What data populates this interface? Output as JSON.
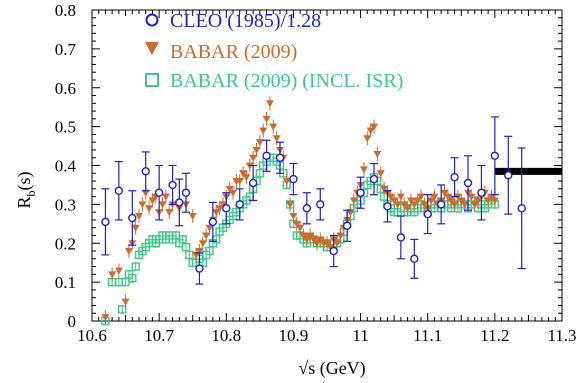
{
  "chart_data": {
    "type": "scatter",
    "xlabel": "√s (GeV)",
    "ylabel_main": "R",
    "ylabel_sub": "b",
    "ylabel_tail": "(s)",
    "xlim": [
      10.6,
      11.3
    ],
    "ylim": [
      0,
      0.8
    ],
    "x_ticks": [
      "10.6",
      "10.7",
      "10.8",
      "10.9",
      "11",
      "11.1",
      "11.2",
      "11.3"
    ],
    "y_ticks": [
      "0",
      "0.1",
      "0.2",
      "0.3",
      "0.4",
      "0.5",
      "0.6",
      "0.7",
      "0.8"
    ],
    "legend_position": "top-left",
    "reference_band": {
      "x_start": 11.2,
      "x_end": 11.3,
      "y": 0.385,
      "color": "#000000"
    },
    "series": [
      {
        "name": "CLEO (1985)/1.28",
        "marker": "open-circle",
        "color": "#1f1fd6",
        "points": [
          {
            "x": 10.62,
            "y": 0.255,
            "err": 0.085
          },
          {
            "x": 10.64,
            "y": 0.335,
            "err": 0.075
          },
          {
            "x": 10.66,
            "y": 0.265,
            "err": 0.07
          },
          {
            "x": 10.68,
            "y": 0.385,
            "err": 0.05
          },
          {
            "x": 10.7,
            "y": 0.33,
            "err": 0.07
          },
          {
            "x": 10.72,
            "y": 0.35,
            "err": 0.05
          },
          {
            "x": 10.73,
            "y": 0.305,
            "err": 0.06
          },
          {
            "x": 10.74,
            "y": 0.33,
            "err": 0.05
          },
          {
            "x": 10.76,
            "y": 0.135,
            "err": 0.04
          },
          {
            "x": 10.78,
            "y": 0.255,
            "err": 0.05
          },
          {
            "x": 10.8,
            "y": 0.29,
            "err": 0.04
          },
          {
            "x": 10.82,
            "y": 0.3,
            "err": 0.04
          },
          {
            "x": 10.84,
            "y": 0.355,
            "err": 0.045
          },
          {
            "x": 10.86,
            "y": 0.425,
            "err": 0.04
          },
          {
            "x": 10.88,
            "y": 0.42,
            "err": 0.04
          },
          {
            "x": 10.9,
            "y": 0.365,
            "err": 0.04
          },
          {
            "x": 10.92,
            "y": 0.29,
            "err": 0.04
          },
          {
            "x": 10.94,
            "y": 0.3,
            "err": 0.04
          },
          {
            "x": 10.96,
            "y": 0.18,
            "err": 0.04
          },
          {
            "x": 10.98,
            "y": 0.245,
            "err": 0.04
          },
          {
            "x": 11.0,
            "y": 0.33,
            "err": 0.04
          },
          {
            "x": 11.02,
            "y": 0.365,
            "err": 0.04
          },
          {
            "x": 11.04,
            "y": 0.295,
            "err": 0.04
          },
          {
            "x": 11.06,
            "y": 0.215,
            "err": 0.055
          },
          {
            "x": 11.08,
            "y": 0.16,
            "err": 0.05
          },
          {
            "x": 11.1,
            "y": 0.275,
            "err": 0.05
          },
          {
            "x": 11.12,
            "y": 0.3,
            "err": 0.05
          },
          {
            "x": 11.14,
            "y": 0.37,
            "err": 0.05
          },
          {
            "x": 11.16,
            "y": 0.355,
            "err": 0.07
          },
          {
            "x": 11.18,
            "y": 0.33,
            "err": 0.07
          },
          {
            "x": 11.2,
            "y": 0.425,
            "err": 0.1
          },
          {
            "x": 11.22,
            "y": 0.375,
            "err": 0.1
          },
          {
            "x": 11.24,
            "y": 0.29,
            "err": 0.155
          }
        ]
      },
      {
        "name": "BABAR (2009)",
        "marker": "filled-down-triangle",
        "color": "#cc6b2b",
        "points": [
          [
            10.62,
            0.01
          ],
          [
            10.63,
            0.12
          ],
          [
            10.64,
            0.13
          ],
          [
            10.65,
            0.05
          ],
          [
            10.655,
            0.18
          ],
          [
            10.66,
            0.2
          ],
          [
            10.665,
            0.24
          ],
          [
            10.67,
            0.27
          ],
          [
            10.675,
            0.3
          ],
          [
            10.68,
            0.33
          ],
          [
            10.685,
            0.29
          ],
          [
            10.69,
            0.31
          ],
          [
            10.695,
            0.32
          ],
          [
            10.7,
            0.28
          ],
          [
            10.705,
            0.3
          ],
          [
            10.71,
            0.32
          ],
          [
            10.715,
            0.28
          ],
          [
            10.72,
            0.3
          ],
          [
            10.73,
            0.29
          ],
          [
            10.74,
            0.3
          ],
          [
            10.75,
            0.27
          ],
          [
            10.755,
            0.17
          ],
          [
            10.76,
            0.18
          ],
          [
            10.765,
            0.2
          ],
          [
            10.77,
            0.22
          ],
          [
            10.775,
            0.24
          ],
          [
            10.78,
            0.26
          ],
          [
            10.785,
            0.28
          ],
          [
            10.79,
            0.29
          ],
          [
            10.795,
            0.3
          ],
          [
            10.8,
            0.32
          ],
          [
            10.805,
            0.34
          ],
          [
            10.81,
            0.33
          ],
          [
            10.815,
            0.36
          ],
          [
            10.82,
            0.36
          ],
          [
            10.825,
            0.38
          ],
          [
            10.83,
            0.37
          ],
          [
            10.835,
            0.4
          ],
          [
            10.84,
            0.42
          ],
          [
            10.845,
            0.44
          ],
          [
            10.85,
            0.46
          ],
          [
            10.855,
            0.49
          ],
          [
            10.86,
            0.52
          ],
          [
            10.865,
            0.56
          ],
          [
            10.87,
            0.5
          ],
          [
            10.875,
            0.47
          ],
          [
            10.88,
            0.44
          ],
          [
            10.885,
            0.42
          ],
          [
            10.89,
            0.36
          ],
          [
            10.895,
            0.3
          ],
          [
            10.9,
            0.27
          ],
          [
            10.905,
            0.25
          ],
          [
            10.91,
            0.24
          ],
          [
            10.915,
            0.22
          ],
          [
            10.92,
            0.21
          ],
          [
            10.925,
            0.22
          ],
          [
            10.93,
            0.21
          ],
          [
            10.935,
            0.2
          ],
          [
            10.94,
            0.21
          ],
          [
            10.945,
            0.2
          ],
          [
            10.95,
            0.2
          ],
          [
            10.955,
            0.19
          ],
          [
            10.96,
            0.21
          ],
          [
            10.965,
            0.2
          ],
          [
            10.97,
            0.22
          ],
          [
            10.975,
            0.24
          ],
          [
            10.98,
            0.26
          ],
          [
            10.985,
            0.28
          ],
          [
            10.99,
            0.31
          ],
          [
            10.995,
            0.33
          ],
          [
            11.0,
            0.35
          ],
          [
            11.005,
            0.39
          ],
          [
            11.01,
            0.47
          ],
          [
            11.015,
            0.49
          ],
          [
            11.02,
            0.5
          ],
          [
            11.025,
            0.43
          ],
          [
            11.03,
            0.38
          ],
          [
            11.035,
            0.34
          ],
          [
            11.04,
            0.33
          ],
          [
            11.045,
            0.32
          ],
          [
            11.05,
            0.31
          ],
          [
            11.055,
            0.3
          ],
          [
            11.06,
            0.32
          ],
          [
            11.065,
            0.3
          ],
          [
            11.07,
            0.29
          ],
          [
            11.075,
            0.31
          ],
          [
            11.08,
            0.3
          ],
          [
            11.085,
            0.31
          ],
          [
            11.09,
            0.32
          ],
          [
            11.095,
            0.3
          ],
          [
            11.1,
            0.29
          ],
          [
            11.105,
            0.31
          ],
          [
            11.11,
            0.32
          ],
          [
            11.115,
            0.3
          ],
          [
            11.12,
            0.31
          ],
          [
            11.125,
            0.33
          ],
          [
            11.13,
            0.32
          ],
          [
            11.135,
            0.31
          ],
          [
            11.14,
            0.3
          ],
          [
            11.145,
            0.32
          ],
          [
            11.15,
            0.31
          ],
          [
            11.155,
            0.3
          ],
          [
            11.16,
            0.33
          ],
          [
            11.165,
            0.32
          ],
          [
            11.17,
            0.3
          ],
          [
            11.175,
            0.31
          ],
          [
            11.18,
            0.32
          ],
          [
            11.185,
            0.33
          ],
          [
            11.19,
            0.31
          ],
          [
            11.195,
            0.32
          ],
          [
            11.2,
            0.31
          ]
        ]
      },
      {
        "name": "BABAR (2009) (INCL. ISR)",
        "marker": "open-square",
        "color": "#3cc98a",
        "points": [
          [
            10.62,
            0.0
          ],
          [
            10.63,
            0.1
          ],
          [
            10.64,
            0.1
          ],
          [
            10.645,
            0.03
          ],
          [
            10.65,
            0.1
          ],
          [
            10.655,
            0.12
          ],
          [
            10.66,
            0.11
          ],
          [
            10.665,
            0.14
          ],
          [
            10.67,
            0.17
          ],
          [
            10.675,
            0.18
          ],
          [
            10.68,
            0.19
          ],
          [
            10.685,
            0.2
          ],
          [
            10.69,
            0.21
          ],
          [
            10.695,
            0.2
          ],
          [
            10.7,
            0.21
          ],
          [
            10.705,
            0.22
          ],
          [
            10.71,
            0.21
          ],
          [
            10.715,
            0.22
          ],
          [
            10.72,
            0.21
          ],
          [
            10.725,
            0.22
          ],
          [
            10.73,
            0.2
          ],
          [
            10.735,
            0.21
          ],
          [
            10.74,
            0.19
          ],
          [
            10.745,
            0.17
          ],
          [
            10.75,
            0.15
          ],
          [
            10.755,
            0.15
          ],
          [
            10.76,
            0.16
          ],
          [
            10.765,
            0.15
          ],
          [
            10.77,
            0.17
          ],
          [
            10.775,
            0.18
          ],
          [
            10.78,
            0.2
          ],
          [
            10.785,
            0.21
          ],
          [
            10.79,
            0.23
          ],
          [
            10.795,
            0.24
          ],
          [
            10.8,
            0.25
          ],
          [
            10.805,
            0.26
          ],
          [
            10.81,
            0.27
          ],
          [
            10.815,
            0.28
          ],
          [
            10.82,
            0.29
          ],
          [
            10.825,
            0.3
          ],
          [
            10.83,
            0.31
          ],
          [
            10.835,
            0.32
          ],
          [
            10.84,
            0.34
          ],
          [
            10.845,
            0.36
          ],
          [
            10.85,
            0.38
          ],
          [
            10.855,
            0.4
          ],
          [
            10.86,
            0.41
          ],
          [
            10.865,
            0.42
          ],
          [
            10.87,
            0.42
          ],
          [
            10.875,
            0.41
          ],
          [
            10.88,
            0.4
          ],
          [
            10.885,
            0.38
          ],
          [
            10.89,
            0.35
          ],
          [
            10.895,
            0.3
          ],
          [
            10.9,
            0.25
          ],
          [
            10.905,
            0.22
          ],
          [
            10.91,
            0.22
          ],
          [
            10.915,
            0.21
          ],
          [
            10.92,
            0.2
          ],
          [
            10.925,
            0.21
          ],
          [
            10.93,
            0.21
          ],
          [
            10.935,
            0.2
          ],
          [
            10.94,
            0.2
          ],
          [
            10.945,
            0.2
          ],
          [
            10.95,
            0.19
          ],
          [
            10.955,
            0.2
          ],
          [
            10.96,
            0.2
          ],
          [
            10.965,
            0.2
          ],
          [
            10.97,
            0.21
          ],
          [
            10.975,
            0.23
          ],
          [
            10.98,
            0.25
          ],
          [
            10.985,
            0.27
          ],
          [
            10.99,
            0.29
          ],
          [
            10.995,
            0.3
          ],
          [
            11.0,
            0.31
          ],
          [
            11.005,
            0.33
          ],
          [
            11.01,
            0.35
          ],
          [
            11.015,
            0.36
          ],
          [
            11.02,
            0.37
          ],
          [
            11.025,
            0.36
          ],
          [
            11.03,
            0.34
          ],
          [
            11.035,
            0.32
          ],
          [
            11.04,
            0.3
          ],
          [
            11.045,
            0.29
          ],
          [
            11.05,
            0.28
          ],
          [
            11.055,
            0.28
          ],
          [
            11.06,
            0.29
          ],
          [
            11.065,
            0.29
          ],
          [
            11.07,
            0.28
          ],
          [
            11.075,
            0.29
          ],
          [
            11.08,
            0.28
          ],
          [
            11.085,
            0.29
          ],
          [
            11.09,
            0.3
          ],
          [
            11.095,
            0.29
          ],
          [
            11.1,
            0.28
          ],
          [
            11.105,
            0.3
          ],
          [
            11.11,
            0.29
          ],
          [
            11.115,
            0.3
          ],
          [
            11.12,
            0.29
          ],
          [
            11.125,
            0.3
          ],
          [
            11.13,
            0.3
          ],
          [
            11.135,
            0.29
          ],
          [
            11.14,
            0.3
          ],
          [
            11.145,
            0.29
          ],
          [
            11.15,
            0.3
          ],
          [
            11.155,
            0.3
          ],
          [
            11.16,
            0.29
          ],
          [
            11.165,
            0.3
          ],
          [
            11.17,
            0.31
          ],
          [
            11.175,
            0.29
          ],
          [
            11.18,
            0.3
          ],
          [
            11.185,
            0.29
          ],
          [
            11.19,
            0.3
          ],
          [
            11.195,
            0.31
          ],
          [
            11.2,
            0.3
          ]
        ]
      }
    ]
  }
}
